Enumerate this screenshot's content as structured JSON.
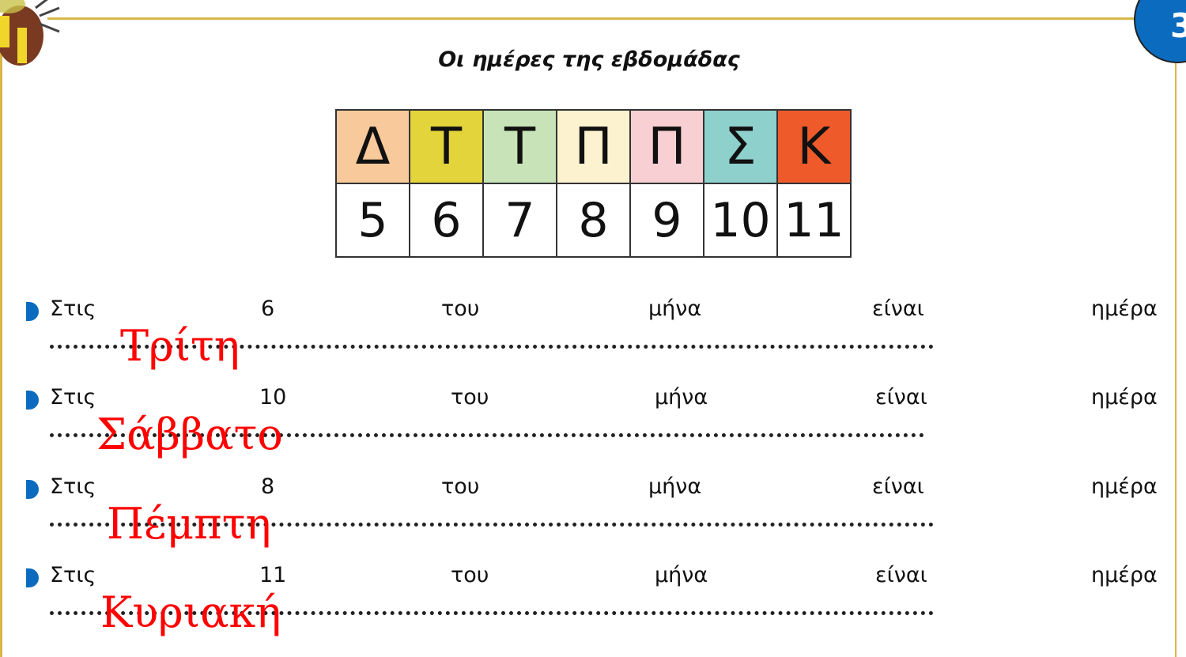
{
  "page_number": "3",
  "title": "Οι ημέρες της εβδομάδας",
  "table": {
    "days": [
      {
        "letter": "Δ",
        "number": "5",
        "color": "#f8c99a"
      },
      {
        "letter": "Τ",
        "number": "6",
        "color": "#e2d43a"
      },
      {
        "letter": "Τ",
        "number": "7",
        "color": "#c7e3b7"
      },
      {
        "letter": "Π",
        "number": "8",
        "color": "#fdf2cf"
      },
      {
        "letter": "Π",
        "number": "9",
        "color": "#f8cfd3"
      },
      {
        "letter": "Σ",
        "number": "10",
        "color": "#8dd0cc"
      },
      {
        "letter": "Κ",
        "number": "11",
        "color": "#ee5a2a"
      }
    ]
  },
  "sentence": {
    "w1": "Στις",
    "w2": "του",
    "w3": "μήνα",
    "w4": "είναι",
    "w5": "ημέρα"
  },
  "rows": [
    {
      "number": "6",
      "answer": "Τρίτη"
    },
    {
      "number": "10",
      "answer": "Σάββατο"
    },
    {
      "number": "8",
      "answer": "Πέμπτη"
    },
    {
      "number": "11",
      "answer": "Κυριακή"
    }
  ]
}
